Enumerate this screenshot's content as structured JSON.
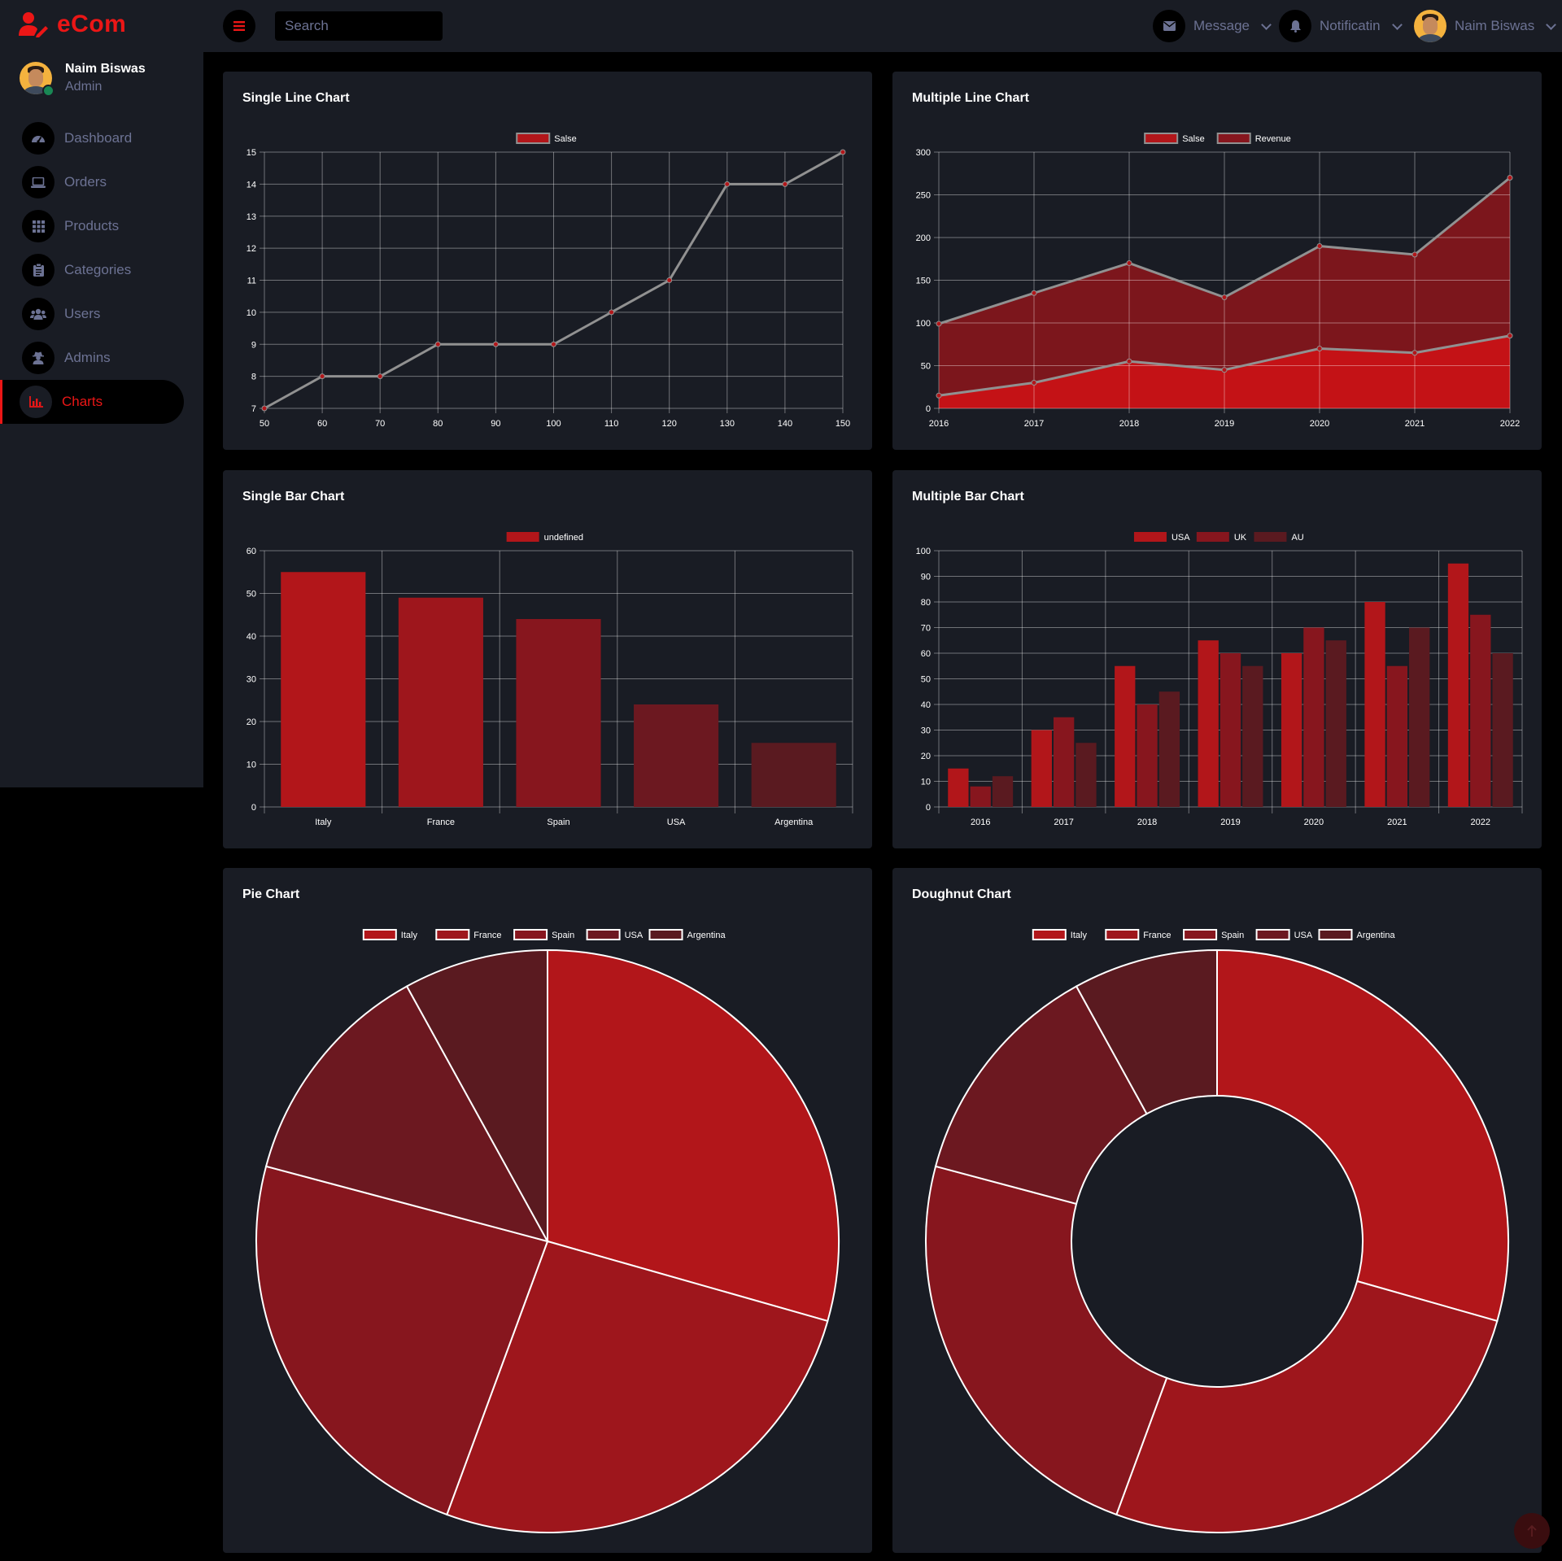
{
  "brand": {
    "name": "eCom",
    "icon": "user-edit-icon",
    "color": "#eb1616"
  },
  "topbar": {
    "search_placeholder": "Search",
    "message_label": "Message",
    "notification_label": "Notificatin",
    "user_name": "Naim Biswas"
  },
  "sidebar": {
    "user_name": "Naim Biswas",
    "user_role": "Admin",
    "items": [
      {
        "label": "Dashboard",
        "icon": "tachometer-icon"
      },
      {
        "label": "Orders",
        "icon": "laptop-icon"
      },
      {
        "label": "Products",
        "icon": "grid-icon"
      },
      {
        "label": "Categories",
        "icon": "clipboard-icon"
      },
      {
        "label": "Users",
        "icon": "users-icon"
      },
      {
        "label": "Admins",
        "icon": "user-secret-icon"
      },
      {
        "label": "Charts",
        "icon": "bar-chart-icon",
        "active": true
      }
    ]
  },
  "theme": {
    "background": "#000000",
    "panel": "#191c24",
    "accent": "#eb1616",
    "muted": "#6c7293"
  },
  "chart_data": [
    {
      "id": "single-line",
      "type": "line",
      "title": "Single Line Chart",
      "x": [
        50,
        60,
        70,
        80,
        90,
        100,
        110,
        120,
        130,
        140,
        150
      ],
      "series": [
        {
          "name": "Salse",
          "values": [
            7,
            8,
            8,
            9,
            9,
            9,
            10,
            11,
            14,
            14,
            15
          ]
        }
      ],
      "ylim": [
        7,
        15
      ],
      "grid": true,
      "legend": "top-center"
    },
    {
      "id": "multi-line",
      "type": "area",
      "title": "Multiple Line Chart",
      "x": [
        "2016",
        "2017",
        "2018",
        "2019",
        "2020",
        "2021",
        "2022"
      ],
      "series": [
        {
          "name": "Salse",
          "values": [
            15,
            30,
            55,
            45,
            70,
            65,
            85
          ]
        },
        {
          "name": "Revenue",
          "values": [
            99,
            135,
            170,
            130,
            190,
            180,
            270
          ]
        }
      ],
      "ylim": [
        0,
        300
      ],
      "grid": true,
      "legend": "top-center"
    },
    {
      "id": "single-bar",
      "type": "bar",
      "title": "Single Bar Chart",
      "categories": [
        "Italy",
        "France",
        "Spain",
        "USA",
        "Argentina"
      ],
      "series": [
        {
          "name": "undefined",
          "values": [
            55,
            49,
            44,
            24,
            15
          ]
        }
      ],
      "ylim": [
        0,
        60
      ],
      "grid": true,
      "legend": "top-center"
    },
    {
      "id": "multi-bar",
      "type": "bar",
      "title": "Multiple Bar Chart",
      "categories": [
        "2016",
        "2017",
        "2018",
        "2019",
        "2020",
        "2021",
        "2022"
      ],
      "series": [
        {
          "name": "USA",
          "values": [
            15,
            30,
            55,
            65,
            60,
            80,
            95
          ]
        },
        {
          "name": "UK",
          "values": [
            8,
            35,
            40,
            60,
            70,
            55,
            75
          ]
        },
        {
          "name": "AU",
          "values": [
            12,
            25,
            45,
            55,
            65,
            70,
            60
          ]
        }
      ],
      "ylim": [
        0,
        100
      ],
      "grid": true,
      "legend": "top-center"
    },
    {
      "id": "pie",
      "type": "pie",
      "title": "Pie Chart",
      "categories": [
        "Italy",
        "France",
        "Spain",
        "USA",
        "Argentina"
      ],
      "values": [
        55,
        49,
        44,
        24,
        15
      ],
      "legend": "top-center"
    },
    {
      "id": "doughnut",
      "type": "pie",
      "title": "Doughnut Chart",
      "categories": [
        "Italy",
        "France",
        "Spain",
        "USA",
        "Argentina"
      ],
      "values": [
        55,
        49,
        44,
        24,
        15
      ],
      "legend": "top-center"
    }
  ]
}
